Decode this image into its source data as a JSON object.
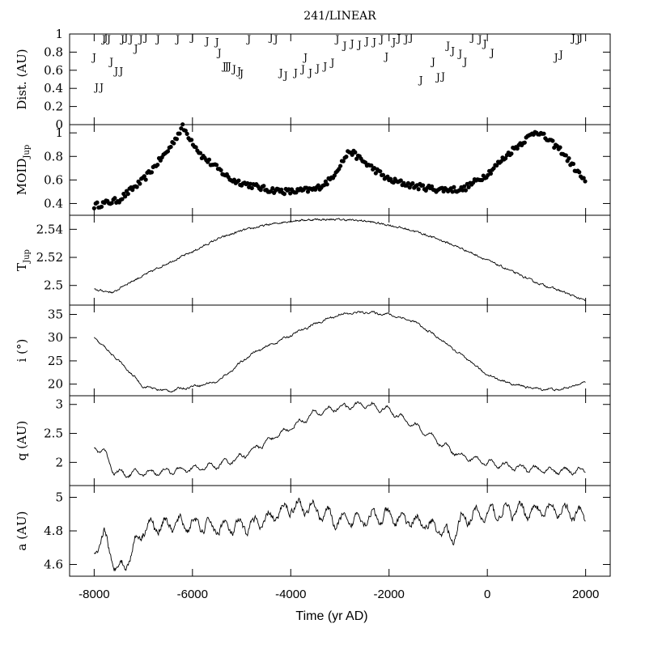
{
  "chart_data": {
    "type": "multi-panel",
    "title": "241/LINEAR",
    "xlabel": "Time (yr AD)",
    "xlim": [
      -8500,
      2500
    ],
    "xticks": [
      -8000,
      -6000,
      -4000,
      -2000,
      0,
      2000
    ],
    "xtick_labels": [
      "-8000",
      "-6000",
      "-4000",
      "-2000",
      "0",
      "2000"
    ],
    "panels": [
      {
        "id": "dist",
        "type": "scatter-marker",
        "marker": "J",
        "ylabel": "Dist. (AU)",
        "ylim": [
          0,
          1
        ],
        "yticks": [
          0,
          0.2,
          0.4,
          0.6,
          0.8,
          1
        ],
        "ytick_labels": [
          "0",
          "0.2",
          "0.4",
          "0.6",
          "0.8",
          "1"
        ],
        "x": [
          -8000,
          -7950,
          -7850,
          -7800,
          -7760,
          -7700,
          -7650,
          -7550,
          -7450,
          -7420,
          -7350,
          -7250,
          -7150,
          -7050,
          -6950,
          -6700,
          -6300,
          -6000,
          -5700,
          -5500,
          -5450,
          -5350,
          -5300,
          -5250,
          -5150,
          -5050,
          -5000,
          -4850,
          -4400,
          -4300,
          -4200,
          -4100,
          -3900,
          -3750,
          -3700,
          -3600,
          -3450,
          -3300,
          -3150,
          -3050,
          -2900,
          -2750,
          -2600,
          -2450,
          -2300,
          -2150,
          -2050,
          -1900,
          -1800,
          -1650,
          -1550,
          -1350,
          -1100,
          -1000,
          -900,
          -800,
          -700,
          -550,
          -450,
          -300,
          -150,
          -50,
          100,
          1400,
          1500,
          1750,
          1850,
          1900
        ],
        "y": [
          0.75,
          0.42,
          0.42,
          0.95,
          0.97,
          0.95,
          0.7,
          0.6,
          0.6,
          0.95,
          0.97,
          0.95,
          0.85,
          0.95,
          0.97,
          0.95,
          0.95,
          0.97,
          0.93,
          0.92,
          0.8,
          0.65,
          0.65,
          0.65,
          0.62,
          0.6,
          0.57,
          0.95,
          0.97,
          0.95,
          0.58,
          0.55,
          0.58,
          0.62,
          0.75,
          0.58,
          0.63,
          0.65,
          0.69,
          0.95,
          0.88,
          0.9,
          0.89,
          0.93,
          0.92,
          0.95,
          0.76,
          0.92,
          0.96,
          0.95,
          0.97,
          0.5,
          0.7,
          0.53,
          0.54,
          0.88,
          0.82,
          0.79,
          0.7,
          0.97,
          0.95,
          0.9,
          0.8,
          0.75,
          0.78,
          0.96,
          0.95,
          0.97
        ]
      },
      {
        "id": "moid",
        "type": "scatter",
        "ylabel": "MOIDJup",
        "ylim": [
          0.3,
          1.07
        ],
        "yticks": [
          0.4,
          0.6,
          0.8,
          1
        ],
        "ytick_labels": [
          "0.4",
          "0.6",
          "0.8",
          "1"
        ],
        "keypoints": {
          "x": [
            -8000,
            -7500,
            -7000,
            -6500,
            -6200,
            -5800,
            -5200,
            -4500,
            -4000,
            -3500,
            -3200,
            -2800,
            -2500,
            -2000,
            -1500,
            -1000,
            -500,
            0,
            500,
            1000,
            1500,
            2000
          ],
          "y": [
            0.38,
            0.43,
            0.6,
            0.85,
            1.05,
            0.8,
            0.6,
            0.52,
            0.5,
            0.52,
            0.6,
            0.85,
            0.75,
            0.6,
            0.55,
            0.52,
            0.52,
            0.65,
            0.85,
            1.02,
            0.85,
            0.58
          ]
        }
      },
      {
        "id": "tjup",
        "type": "line",
        "ylabel": "TJup",
        "ylim": [
          2.486,
          2.55
        ],
        "yticks": [
          2.5,
          2.52,
          2.54
        ],
        "ytick_labels": [
          "2.5",
          "2.52",
          "2.54"
        ],
        "keypoints": {
          "x": [
            -8000,
            -7600,
            -7400,
            -7000,
            -6500,
            -6000,
            -5500,
            -5000,
            -4500,
            -4000,
            -3500,
            -3000,
            -2500,
            -2000,
            -1500,
            -1000,
            -500,
            0,
            500,
            1000,
            1500,
            2000
          ],
          "y": [
            2.497,
            2.495,
            2.5,
            2.507,
            2.516,
            2.524,
            2.533,
            2.539,
            2.543,
            2.546,
            2.547,
            2.547,
            2.546,
            2.543,
            2.539,
            2.533,
            2.526,
            2.518,
            2.51,
            2.502,
            2.496,
            2.489
          ]
        }
      },
      {
        "id": "incl",
        "type": "line",
        "ylabel": "i (°)",
        "ylim": [
          17.5,
          37
        ],
        "yticks": [
          20,
          25,
          30,
          35
        ],
        "ytick_labels": [
          "20",
          "25",
          "30",
          "35"
        ],
        "keypoints": {
          "x": [
            -8000,
            -7500,
            -7000,
            -6500,
            -6000,
            -5500,
            -5200,
            -4800,
            -4500,
            -4000,
            -3500,
            -3000,
            -2500,
            -2000,
            -1500,
            -1000,
            -500,
            0,
            500,
            1000,
            1500,
            2000
          ],
          "y": [
            30,
            25,
            19.5,
            18.5,
            19.5,
            20.5,
            23,
            26.5,
            28,
            30.5,
            33,
            35,
            35.5,
            35,
            33.5,
            30,
            26,
            22,
            20,
            19,
            18.8,
            20.5
          ]
        }
      },
      {
        "id": "q",
        "type": "line",
        "ylabel": "q (AU)",
        "ylim": [
          1.6,
          3.15
        ],
        "yticks": [
          2,
          2.5,
          3
        ],
        "ytick_labels": [
          "2",
          "2.5",
          "3"
        ],
        "keypoints": {
          "x": [
            -8000,
            -7800,
            -7600,
            -7400,
            -7000,
            -6500,
            -6000,
            -5500,
            -5000,
            -4500,
            -4000,
            -3500,
            -3000,
            -2500,
            -2000,
            -1500,
            -1000,
            -500,
            0,
            500,
            1000,
            1500,
            2000
          ],
          "y": [
            2.25,
            2.2,
            1.85,
            1.8,
            1.82,
            1.85,
            1.88,
            1.95,
            2.1,
            2.35,
            2.6,
            2.85,
            2.95,
            3.0,
            2.9,
            2.65,
            2.35,
            2.1,
            2.0,
            1.92,
            1.88,
            1.85,
            1.85
          ]
        }
      },
      {
        "id": "a",
        "type": "line",
        "ylabel": "a (AU)",
        "ylim": [
          4.53,
          5.07
        ],
        "yticks": [
          4.6,
          4.8,
          5
        ],
        "ytick_labels": [
          "4.6",
          "4.8",
          "5"
        ],
        "keypoints": {
          "x": [
            -8000,
            -7800,
            -7600,
            -7400,
            -7200,
            -7000,
            -6500,
            -6000,
            -5500,
            -5000,
            -4500,
            -4000,
            -3500,
            -3000,
            -2500,
            -2000,
            -1500,
            -1000,
            -700,
            -500,
            0,
            500,
            1000,
            1500,
            2000
          ],
          "y": [
            4.65,
            4.78,
            4.6,
            4.58,
            4.7,
            4.82,
            4.84,
            4.84,
            4.82,
            4.82,
            4.86,
            4.95,
            4.93,
            4.85,
            4.88,
            4.88,
            4.86,
            4.82,
            4.75,
            4.88,
            4.9,
            4.92,
            4.92,
            4.92,
            4.88
          ]
        }
      }
    ]
  }
}
